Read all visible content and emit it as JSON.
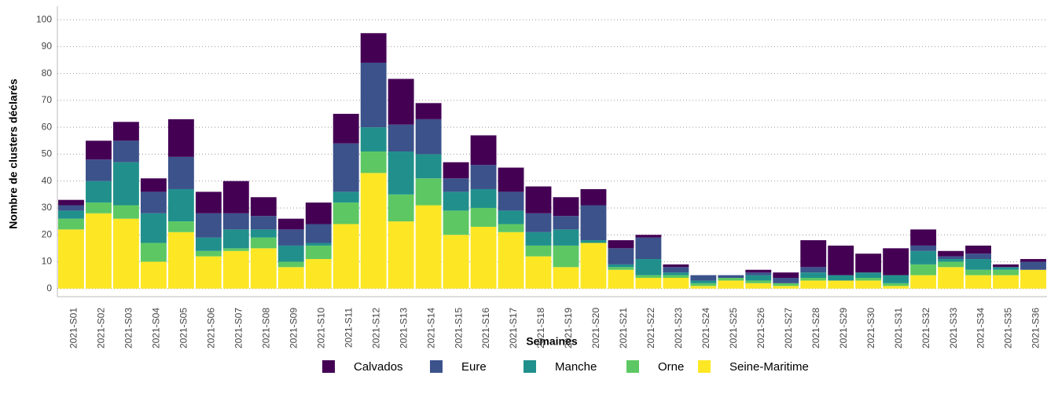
{
  "chart_data": {
    "type": "stacked_bar",
    "xlabel": "Semaines",
    "ylabel": "Nombre de clusters déclarés",
    "categories": [
      "2021-S01",
      "2021-S02",
      "2021-S03",
      "2021-S04",
      "2021-S05",
      "2021-S06",
      "2021-S07",
      "2021-S08",
      "2021-S09",
      "2021-S10",
      "2021-S11",
      "2021-S12",
      "2021-S13",
      "2021-S14",
      "2021-S15",
      "2021-S16",
      "2021-S17",
      "2021-S18",
      "2021-S19",
      "2021-S20",
      "2021-S21",
      "2021-S22",
      "2021-S23",
      "2021-S24",
      "2021-S25",
      "2021-S26",
      "2021-S27",
      "2021-S28",
      "2021-S29",
      "2021-S30",
      "2021-S31",
      "2021-S32",
      "2021-S33",
      "2021-S34",
      "2021-S35",
      "2021-S36"
    ],
    "series": [
      {
        "name": "Calvados",
        "color": "#440154",
        "values": [
          2,
          7,
          7,
          5,
          14,
          8,
          12,
          7,
          4,
          8,
          11,
          11,
          17,
          6,
          6,
          11,
          9,
          10,
          7,
          6,
          3,
          1,
          1,
          0,
          0,
          1,
          2,
          10,
          11,
          7,
          10,
          6,
          2,
          3,
          1,
          1
        ]
      },
      {
        "name": "Eure",
        "color": "#3b528b",
        "values": [
          2,
          8,
          8,
          8,
          12,
          9,
          6,
          5,
          6,
          7,
          18,
          24,
          10,
          13,
          5,
          9,
          7,
          7,
          5,
          13,
          6,
          8,
          2,
          2,
          1,
          1,
          2,
          2,
          0,
          0,
          0,
          2,
          1,
          2,
          0,
          3
        ]
      },
      {
        "name": "Manche",
        "color": "#21908c",
        "values": [
          3,
          8,
          16,
          11,
          12,
          5,
          7,
          3,
          6,
          1,
          4,
          9,
          16,
          9,
          7,
          7,
          5,
          5,
          6,
          1,
          1,
          6,
          1,
          1,
          0,
          2,
          0,
          2,
          2,
          2,
          3,
          5,
          1,
          4,
          1,
          0
        ]
      },
      {
        "name": "Orne",
        "color": "#5dc863",
        "values": [
          4,
          4,
          5,
          7,
          4,
          2,
          1,
          4,
          2,
          5,
          8,
          8,
          10,
          10,
          9,
          7,
          3,
          4,
          8,
          0,
          1,
          1,
          1,
          1,
          1,
          1,
          1,
          1,
          0,
          1,
          1,
          4,
          2,
          2,
          2,
          0
        ]
      },
      {
        "name": "Seine-Maritime",
        "color": "#fde725",
        "values": [
          22,
          28,
          26,
          10,
          21,
          12,
          14,
          15,
          8,
          11,
          24,
          43,
          25,
          31,
          20,
          23,
          21,
          12,
          8,
          17,
          7,
          4,
          4,
          1,
          3,
          2,
          1,
          3,
          3,
          3,
          1,
          5,
          8,
          5,
          5,
          7
        ]
      }
    ],
    "ylim": [
      -3,
      105
    ],
    "yticks": [
      0,
      10,
      20,
      30,
      40,
      50,
      60,
      70,
      80,
      90,
      100
    ],
    "grid": true
  }
}
